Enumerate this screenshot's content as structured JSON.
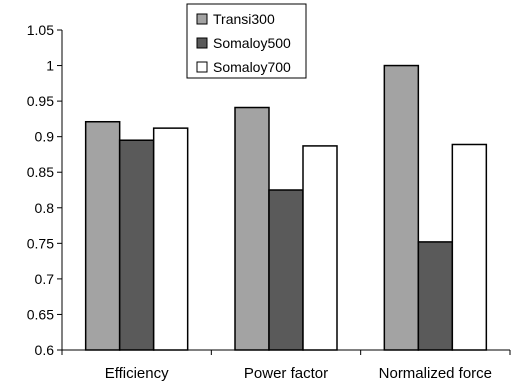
{
  "chart_data": {
    "type": "bar",
    "title": "",
    "xlabel": "",
    "ylabel": "",
    "categories": [
      "Efficiency",
      "Power factor",
      "Normalized force"
    ],
    "series": [
      {
        "name": "Transi300",
        "values": [
          0.921,
          0.941,
          1.0
        ],
        "color": "#a3a3a3"
      },
      {
        "name": "Somaloy500",
        "values": [
          0.895,
          0.825,
          0.752
        ],
        "color": "#5a5a5a"
      },
      {
        "name": "Somaloy700",
        "values": [
          0.912,
          0.887,
          0.889
        ],
        "color": "#ffffff"
      }
    ],
    "ylim": [
      0.6,
      1.05
    ],
    "yticks": [
      "0.6",
      "0.65",
      "0.7",
      "0.75",
      "0.8",
      "0.85",
      "0.9",
      "0.95",
      "1",
      "1.05"
    ],
    "grid": false,
    "legend_position": "top-center"
  }
}
